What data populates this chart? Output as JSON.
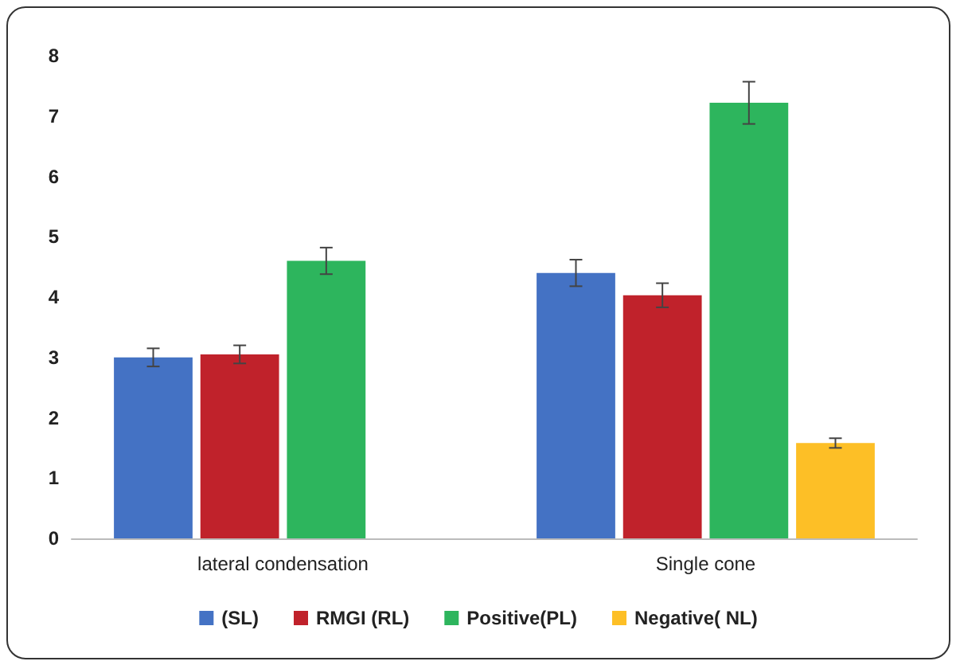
{
  "chart_data": {
    "type": "bar",
    "categories": [
      "lateral condensation",
      "Single cone"
    ],
    "series": [
      {
        "name": "(SL)",
        "color": "#4472c4",
        "values": [
          3.0,
          4.4
        ],
        "errors": [
          0.15,
          0.22
        ]
      },
      {
        "name": "RMGI (RL)",
        "color": "#c0222b",
        "values": [
          3.05,
          4.03
        ],
        "errors": [
          0.15,
          0.2
        ]
      },
      {
        "name": "Positive(PL)",
        "color": "#2db55d",
        "values": [
          4.6,
          7.22
        ],
        "errors": [
          0.22,
          0.35
        ]
      },
      {
        "name": "Negative( NL)",
        "color": "#fdbf26",
        "values": [
          0,
          1.58
        ],
        "errors": [
          null,
          0.08
        ]
      }
    ],
    "ylim": [
      0,
      8
    ],
    "yticks": [
      0,
      1,
      2,
      3,
      4,
      5,
      6,
      7,
      8
    ],
    "grid": false,
    "legend": "bottom"
  }
}
